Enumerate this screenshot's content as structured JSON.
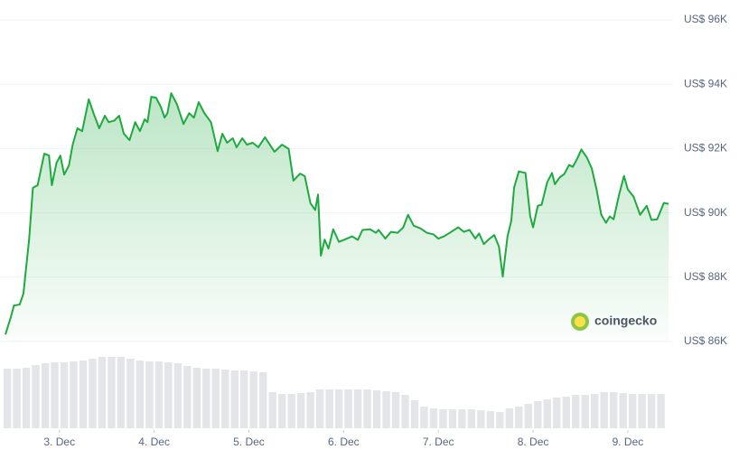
{
  "chart_data": {
    "type": "line",
    "xlim": [
      2.43,
      9.43
    ],
    "xticks": [
      {
        "value": 3,
        "label": "3. Dec"
      },
      {
        "value": 4,
        "label": "4. Dec"
      },
      {
        "value": 5,
        "label": "5. Dec"
      },
      {
        "value": 6,
        "label": "6. Dec"
      },
      {
        "value": 7,
        "label": "7. Dec"
      },
      {
        "value": 8,
        "label": "8. Dec"
      },
      {
        "value": 9,
        "label": "9. Dec"
      }
    ],
    "ylim": [
      86000,
      96000
    ],
    "yticks": [
      {
        "value": 86000,
        "label": "US$ 86K"
      },
      {
        "value": 88000,
        "label": "US$ 88K"
      },
      {
        "value": 90000,
        "label": "US$ 90K"
      },
      {
        "value": 92000,
        "label": "US$ 92K"
      },
      {
        "value": 94000,
        "label": "US$ 94K"
      },
      {
        "value": 96000,
        "label": "US$ 96K"
      }
    ],
    "grid": true,
    "brand": "coingecko",
    "series": [
      {
        "color": "#1eaa3f",
        "x": [
          2.43,
          2.49,
          2.52,
          2.58,
          2.62,
          2.68,
          2.72,
          2.77,
          2.84,
          2.89,
          2.92,
          2.97,
          3.01,
          3.05,
          3.1,
          3.14,
          3.19,
          3.24,
          3.31,
          3.36,
          3.42,
          3.48,
          3.52,
          3.58,
          3.63,
          3.68,
          3.74,
          3.8,
          3.85,
          3.9,
          3.93,
          3.97,
          4.02,
          4.07,
          4.11,
          4.14,
          4.18,
          4.24,
          4.31,
          4.37,
          4.42,
          4.47,
          4.53,
          4.6,
          4.67,
          4.72,
          4.77,
          4.83,
          4.87,
          4.93,
          4.98,
          5.04,
          5.1,
          5.17,
          5.27,
          5.35,
          5.42,
          5.47,
          5.54,
          5.59,
          5.65,
          5.7,
          5.73,
          5.76,
          5.8,
          5.84,
          5.89,
          5.95,
          6.01,
          6.09,
          6.15,
          6.2,
          6.28,
          6.34,
          6.37,
          6.44,
          6.5,
          6.57,
          6.63,
          6.68,
          6.74,
          6.81,
          6.88,
          6.95,
          7.0,
          7.06,
          7.12,
          7.21,
          7.27,
          7.33,
          7.39,
          7.43,
          7.48,
          7.53,
          7.59,
          7.64,
          7.68,
          7.73,
          7.77,
          7.8,
          7.85,
          7.92,
          7.97,
          8.0,
          8.05,
          8.09,
          8.15,
          8.2,
          8.23,
          8.28,
          8.33,
          8.38,
          8.42,
          8.47,
          8.51,
          8.57,
          8.62,
          8.67,
          8.72,
          8.77,
          8.81,
          8.85,
          8.91,
          8.96,
          9.0,
          9.06,
          9.13,
          9.2,
          9.25,
          9.31,
          9.38,
          9.43
        ],
        "values": [
          86220,
          86790,
          87120,
          87150,
          87490,
          89170,
          90780,
          90860,
          91840,
          91780,
          90860,
          91560,
          91780,
          91190,
          91470,
          92120,
          92630,
          92540,
          93530,
          93100,
          92630,
          93020,
          92820,
          92870,
          93020,
          92460,
          92260,
          92820,
          92540,
          92910,
          92820,
          93610,
          93580,
          93300,
          92960,
          93100,
          93720,
          93380,
          92760,
          93100,
          92960,
          93440,
          93100,
          92820,
          91920,
          92460,
          92180,
          92320,
          92040,
          92320,
          92120,
          92180,
          92040,
          92350,
          91900,
          92120,
          91990,
          91000,
          91220,
          91140,
          90300,
          90090,
          90570,
          88670,
          89170,
          88890,
          89490,
          89100,
          89170,
          89270,
          89160,
          89470,
          89490,
          89380,
          89470,
          89200,
          89410,
          89380,
          89550,
          89940,
          89600,
          89520,
          89380,
          89330,
          89200,
          89270,
          89380,
          89550,
          89410,
          89470,
          89200,
          89360,
          89030,
          89170,
          89310,
          88950,
          88020,
          89270,
          89750,
          90790,
          91290,
          91240,
          89890,
          89550,
          90220,
          90250,
          90960,
          91240,
          90890,
          91100,
          91210,
          91490,
          91430,
          91710,
          91970,
          91710,
          91380,
          90730,
          89940,
          89690,
          89890,
          89800,
          90590,
          91150,
          90730,
          90510,
          89940,
          90220,
          89780,
          89800,
          90310,
          90280
        ]
      }
    ],
    "volume": {
      "color": "#e3e5e8",
      "x": [
        2.45,
        2.55,
        2.65,
        2.75,
        2.85,
        2.95,
        3.05,
        3.15,
        3.25,
        3.35,
        3.45,
        3.55,
        3.65,
        3.75,
        3.85,
        3.95,
        4.05,
        4.15,
        4.25,
        4.35,
        4.45,
        4.55,
        4.65,
        4.75,
        4.85,
        4.95,
        5.05,
        5.15,
        5.25,
        5.35,
        5.45,
        5.55,
        5.65,
        5.75,
        5.85,
        5.95,
        6.05,
        6.15,
        6.25,
        6.35,
        6.45,
        6.55,
        6.65,
        6.75,
        6.85,
        6.95,
        7.05,
        7.15,
        7.25,
        7.35,
        7.45,
        7.55,
        7.65,
        7.75,
        7.85,
        7.95,
        8.05,
        8.15,
        8.25,
        8.35,
        8.45,
        8.55,
        8.65,
        8.75,
        8.85,
        8.95,
        9.05,
        9.15,
        9.25,
        9.35
      ],
      "values": [
        66,
        66,
        67,
        70,
        72,
        73,
        73,
        74,
        75,
        77,
        79,
        79,
        79,
        77,
        75,
        74,
        74,
        73,
        72,
        69,
        67,
        66,
        66,
        65,
        64,
        64,
        63,
        62,
        40,
        38,
        38,
        39,
        40,
        43,
        43,
        43,
        43,
        43,
        43,
        42,
        41,
        40,
        37,
        31,
        24,
        22,
        21,
        21,
        21,
        21,
        20,
        19,
        18,
        22,
        24,
        27,
        30,
        32,
        34,
        35,
        37,
        37,
        38,
        40,
        40,
        39,
        38,
        38,
        38,
        38
      ]
    }
  }
}
